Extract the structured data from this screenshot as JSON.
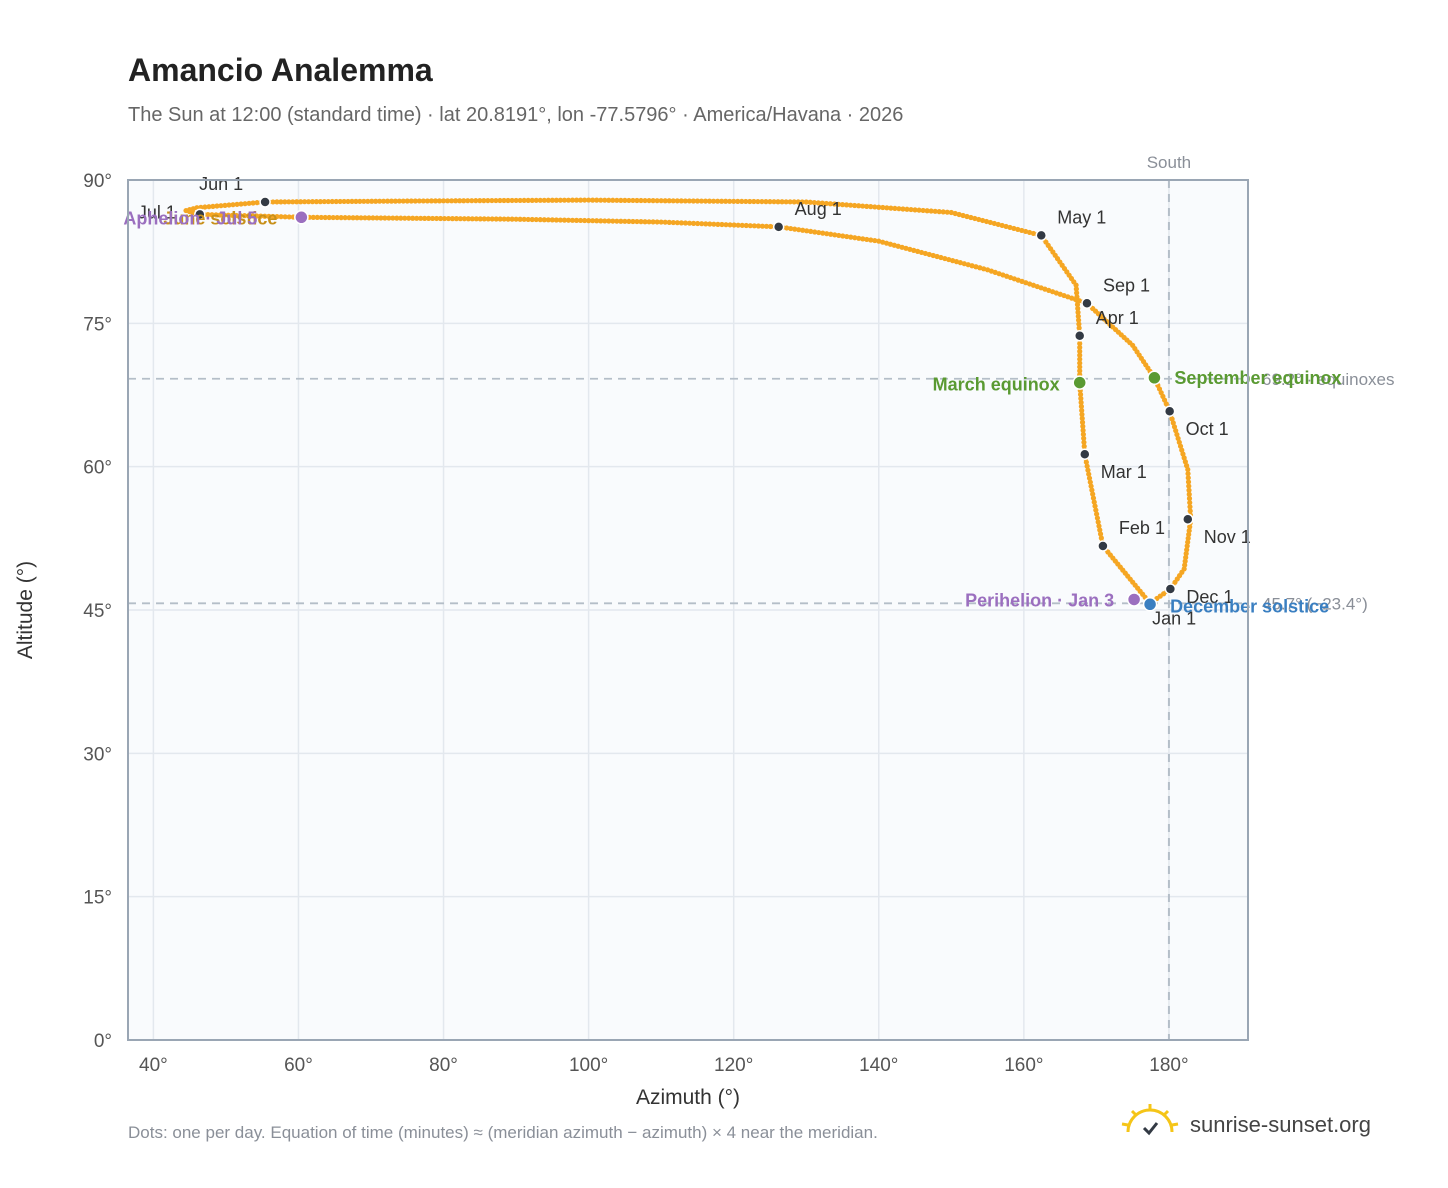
{
  "header": {
    "title": "Amancio Analemma",
    "subtitle": "The Sun at 12:00 (standard time) · lat 20.8191°, lon -77.5796° · America/Havana · 2026"
  },
  "footer": {
    "note": "Dots: one per day. Equation of time (minutes) ≈ (meridian azimuth − azimuth) × 4 near the meridian.",
    "brand": "sunrise-sunset.org"
  },
  "colors": {
    "curve": "#f5a623",
    "month_dot": "#333a44",
    "equinox": "#5a9a32",
    "solstice_dec": "#3a7fc1",
    "solstice_jun": "#c8901a",
    "apsis": "#9b6fbf",
    "grid": "#e3e8ee",
    "plot_bg": "#f9fbfd",
    "frame": "#9aa6b4",
    "ref_line": "#b4bec8"
  },
  "chart_data": {
    "type": "scatter",
    "title": "Amancio Analemma",
    "xlabel": "Azimuth (°)",
    "ylabel": "Altitude (°)",
    "xlim": [
      36.5,
      190.9
    ],
    "ylim": [
      0,
      90
    ],
    "xticks": [
      "40°",
      "60°",
      "80°",
      "100°",
      "120°",
      "140°",
      "160°",
      "180°"
    ],
    "xtick_values": [
      40,
      60,
      80,
      100,
      120,
      140,
      160,
      180
    ],
    "yticks": [
      "0°",
      "15°",
      "30°",
      "45°",
      "60°",
      "75°",
      "90°"
    ],
    "ytick_values": [
      0,
      15,
      30,
      45,
      60,
      75,
      90
    ],
    "grid": true,
    "meridian": {
      "azimuth": 180,
      "label": "South"
    },
    "reference_lines": [
      {
        "altitude": 69.2,
        "label": "69.2° · equinoxes"
      },
      {
        "altitude": 45.7,
        "label": "45.7° (−23.4°)"
      }
    ],
    "month_markers": [
      {
        "label": "Jan 1",
        "azimuth": 177.4,
        "altitude": 45.7
      },
      {
        "label": "Feb 1",
        "azimuth": 170.9,
        "altitude": 51.7
      },
      {
        "label": "Mar 1",
        "azimuth": 168.4,
        "altitude": 61.3
      },
      {
        "label": "Apr 1",
        "azimuth": 167.7,
        "altitude": 73.7
      },
      {
        "label": "May 1",
        "azimuth": 162.4,
        "altitude": 84.2
      },
      {
        "label": "Jun 1",
        "azimuth": 55.4,
        "altitude": 87.7
      },
      {
        "label": "Jul 1",
        "azimuth": 46.4,
        "altitude": 86.4
      },
      {
        "label": "Aug 1",
        "azimuth": 126.2,
        "altitude": 85.1
      },
      {
        "label": "Sep 1",
        "azimuth": 168.7,
        "altitude": 77.1
      },
      {
        "label": "Oct 1",
        "azimuth": 180.1,
        "altitude": 65.8
      },
      {
        "label": "Nov 1",
        "azimuth": 182.6,
        "altitude": 54.5
      },
      {
        "label": "Dec 1",
        "azimuth": 180.2,
        "altitude": 47.2
      }
    ],
    "events": [
      {
        "label": "March equinox",
        "azimuth": 167.7,
        "altitude": 68.8,
        "kind": "equinox"
      },
      {
        "label": "September equinox",
        "azimuth": 178.0,
        "altitude": 69.3,
        "kind": "equinox"
      },
      {
        "label": "December solstice",
        "azimuth": 177.4,
        "altitude": 45.6,
        "kind": "solstice_dec"
      },
      {
        "label": "June solstice",
        "azimuth": 60.4,
        "altitude": 86.1,
        "kind": "solstice_jun"
      },
      {
        "label": "Perihelion · Jan 3",
        "azimuth": 175.2,
        "altitude": 46.1,
        "kind": "apsis"
      },
      {
        "label": "Aphelion · Jul 5",
        "azimuth": 60.4,
        "altitude": 86.1,
        "kind": "apsis"
      }
    ],
    "daily_path": [
      [
        177.4,
        45.7
      ],
      [
        170.9,
        51.7
      ],
      [
        168.4,
        61.3
      ],
      [
        167.7,
        68.8
      ],
      [
        167.7,
        73.7
      ],
      [
        167.2,
        79.0
      ],
      [
        162.4,
        84.2
      ],
      [
        150.0,
        86.6
      ],
      [
        130.0,
        87.7
      ],
      [
        100.0,
        87.9
      ],
      [
        75.0,
        87.8
      ],
      [
        55.4,
        87.7
      ],
      [
        46.0,
        87.1
      ],
      [
        44.5,
        86.8
      ],
      [
        46.4,
        86.4
      ],
      [
        60.4,
        86.1
      ],
      [
        90.0,
        85.9
      ],
      [
        110.0,
        85.6
      ],
      [
        126.2,
        85.1
      ],
      [
        140.0,
        83.6
      ],
      [
        155.0,
        80.6
      ],
      [
        168.7,
        77.1
      ],
      [
        175.0,
        72.7
      ],
      [
        178.0,
        69.3
      ],
      [
        180.1,
        65.8
      ],
      [
        182.6,
        59.7
      ],
      [
        183.0,
        54.5
      ],
      [
        182.1,
        49.3
      ],
      [
        180.2,
        47.2
      ],
      [
        177.4,
        45.7
      ]
    ]
  }
}
